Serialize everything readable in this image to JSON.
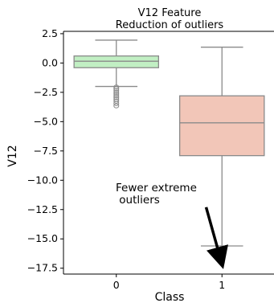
{
  "chart_data": {
    "type": "box",
    "title": "V12 Feature",
    "subtitle": "Reduction of outliers",
    "xlabel": "Class",
    "ylabel": "V12",
    "categories": [
      "0",
      "1"
    ],
    "ylim": [
      -18,
      2.7
    ],
    "yticks": [
      2.5,
      0.0,
      -2.5,
      -5.0,
      -7.5,
      -10.0,
      -12.5,
      -15.0,
      -17.5
    ],
    "ytick_labels": [
      "2.5",
      "0.0",
      "−2.5",
      "−5.0",
      "−7.5",
      "−10.0",
      "−12.5",
      "−15.0",
      "−17.5"
    ],
    "grid": false,
    "boxes": [
      {
        "category": "0",
        "whisker_low": -2.0,
        "q1": -0.4,
        "median": 0.15,
        "q3": 0.6,
        "whisker_high": 1.95,
        "outliers": [
          -2.05,
          -2.2,
          -2.35,
          -2.5,
          -2.65,
          -2.8,
          -2.95,
          -3.1,
          -3.25,
          -3.45,
          -3.65
        ],
        "color": "#c1efc3"
      },
      {
        "category": "1",
        "whisker_low": -15.6,
        "q1": -7.9,
        "median": -5.1,
        "q3": -2.8,
        "whisker_high": 1.35,
        "outliers": [
          -15.8,
          -16.0,
          -16.2,
          -16.4,
          -16.6,
          -16.8,
          -17.0
        ],
        "color": "#f2c6b8"
      }
    ],
    "annotations": [
      {
        "lines": [
          "Fewer extreme",
          " outliers"
        ],
        "arrow_from": [
          0.85,
          -12.3
        ],
        "arrow_to": [
          1.0,
          -17.2
        ]
      }
    ]
  }
}
